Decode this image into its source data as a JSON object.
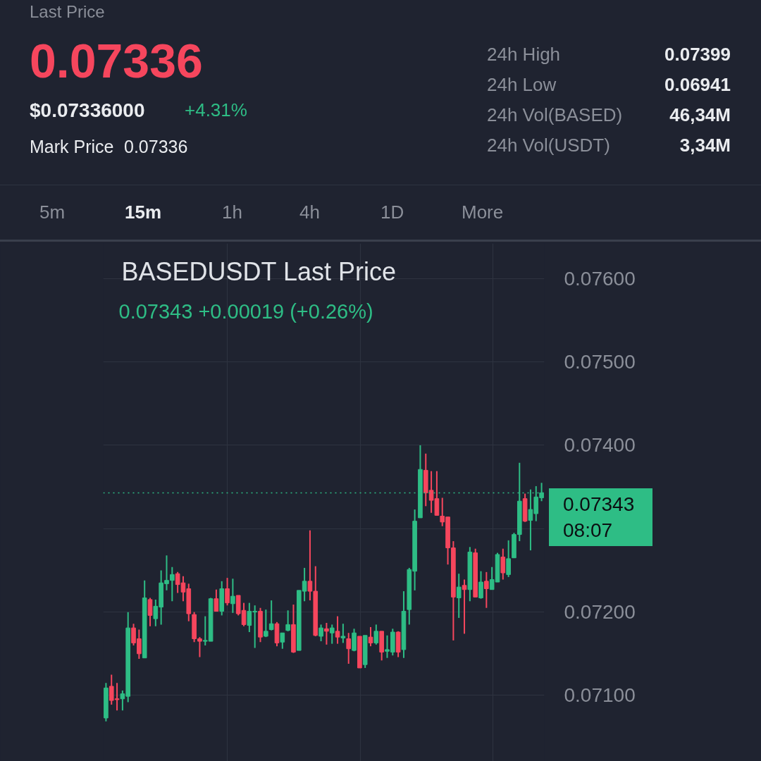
{
  "chart_data": {
    "type": "candlestick",
    "title": "BASEDUSDT Last Price",
    "subtitle": "0.07343  +0.00019 (+0.26%)",
    "annotations": [
      "Last Price",
      "0.07336",
      "$0.07336000",
      "+4.31%",
      "Mark Price",
      "0.07336",
      "24h High",
      "0.07399",
      "24h Low",
      "0.06941",
      "24h Vol(BASED)",
      "46,34M",
      "24h Vol(USDT)",
      "3,34M",
      "5m",
      "15m",
      "1h",
      "4h",
      "1D",
      "More",
      "08:07"
    ],
    "categories": [
      null,
      null,
      null,
      null,
      null,
      null,
      null,
      null,
      null,
      null,
      null,
      null,
      null,
      null,
      null,
      null,
      null,
      null,
      null,
      null,
      null,
      null,
      null,
      null,
      null,
      null,
      null,
      null,
      null,
      null,
      null,
      null,
      null,
      null,
      null,
      null,
      null,
      null,
      null,
      null,
      null,
      null,
      null,
      null,
      null,
      null,
      null,
      null,
      null,
      null,
      null,
      null,
      null,
      null,
      null,
      null,
      null,
      null,
      null,
      null,
      null,
      null,
      null,
      null,
      null,
      null,
      null,
      null,
      null,
      null,
      null,
      null,
      null,
      null,
      null,
      null,
      null,
      null,
      null,
      null
    ],
    "ohlc": [
      [
        0.07073,
        0.07115,
        0.07069,
        0.07109
      ],
      [
        0.07111,
        0.07125,
        0.07089,
        0.07094
      ],
      [
        0.07096,
        0.07115,
        0.07082,
        0.07095
      ],
      [
        0.07096,
        0.07106,
        0.07082,
        0.07102
      ],
      [
        0.07099,
        0.072,
        0.07092,
        0.07181
      ],
      [
        0.07181,
        0.07186,
        0.0716,
        0.07163
      ],
      [
        0.07168,
        0.07179,
        0.07144,
        0.0715
      ],
      [
        0.07145,
        0.07238,
        0.07145,
        0.07217
      ],
      [
        0.07215,
        0.07217,
        0.07183,
        0.07196
      ],
      [
        0.07192,
        0.07215,
        0.07183,
        0.07207
      ],
      [
        0.07206,
        0.0725,
        0.07185,
        0.07235
      ],
      [
        0.07234,
        0.07268,
        0.07226,
        0.07238
      ],
      [
        0.07238,
        0.07254,
        0.07213,
        0.07245
      ],
      [
        0.07246,
        0.07248,
        0.07223,
        0.07233
      ],
      [
        0.07235,
        0.07243,
        0.07213,
        0.07224
      ],
      [
        0.07228,
        0.07234,
        0.07189,
        0.07198
      ],
      [
        0.07197,
        0.072,
        0.07164,
        0.07168
      ],
      [
        0.07168,
        0.0717,
        0.07146,
        0.07165
      ],
      [
        0.07165,
        0.07195,
        0.0716,
        0.07166
      ],
      [
        0.07165,
        0.07217,
        0.07165,
        0.07216
      ],
      [
        0.07216,
        0.07227,
        0.07201,
        0.07201
      ],
      [
        0.07201,
        0.07237,
        0.07196,
        0.07228
      ],
      [
        0.07228,
        0.07241,
        0.07208,
        0.07211
      ],
      [
        0.0721,
        0.0724,
        0.07199,
        0.07219
      ],
      [
        0.0722,
        0.0722,
        0.07196,
        0.07198
      ],
      [
        0.07202,
        0.07211,
        0.07183,
        0.07185
      ],
      [
        0.07184,
        0.07211,
        0.07176,
        0.07201
      ],
      [
        0.072,
        0.07208,
        0.07157,
        0.07201
      ],
      [
        0.07201,
        0.07205,
        0.07164,
        0.0717
      ],
      [
        0.07171,
        0.07203,
        0.0717,
        0.07177
      ],
      [
        0.07179,
        0.07214,
        0.07178,
        0.07186
      ],
      [
        0.07186,
        0.07188,
        0.07159,
        0.07163
      ],
      [
        0.07164,
        0.07175,
        0.07156,
        0.07175
      ],
      [
        0.07178,
        0.07202,
        0.07177,
        0.07185
      ],
      [
        0.07185,
        0.07209,
        0.07151,
        0.07152
      ],
      [
        0.07154,
        0.07226,
        0.07154,
        0.07226
      ],
      [
        0.07225,
        0.07253,
        0.07213,
        0.07237
      ],
      [
        0.07237,
        0.07298,
        0.07214,
        0.07225
      ],
      [
        0.07225,
        0.07255,
        0.07171,
        0.07172
      ],
      [
        0.07171,
        0.07185,
        0.07165,
        0.07181
      ],
      [
        0.0718,
        0.07187,
        0.07161,
        0.07177
      ],
      [
        0.07175,
        0.07185,
        0.07162,
        0.07181
      ],
      [
        0.07177,
        0.07195,
        0.07162,
        0.0717
      ],
      [
        0.07169,
        0.07186,
        0.07163,
        0.07171
      ],
      [
        0.07168,
        0.07175,
        0.07138,
        0.07156
      ],
      [
        0.07154,
        0.0718,
        0.07153,
        0.07175
      ],
      [
        0.07171,
        0.07171,
        0.07133,
        0.07133
      ],
      [
        0.07137,
        0.07172,
        0.07133,
        0.07172
      ],
      [
        0.0717,
        0.07182,
        0.07159,
        0.07163
      ],
      [
        0.07163,
        0.07185,
        0.07161,
        0.07177
      ],
      [
        0.07177,
        0.07177,
        0.07142,
        0.07152
      ],
      [
        0.07153,
        0.07172,
        0.07145,
        0.07155
      ],
      [
        0.07152,
        0.0718,
        0.07148,
        0.07176
      ],
      [
        0.07176,
        0.07177,
        0.07146,
        0.07152
      ],
      [
        0.07155,
        0.07225,
        0.07145,
        0.07201
      ],
      [
        0.07203,
        0.07253,
        0.07185,
        0.07251
      ],
      [
        0.07249,
        0.07323,
        0.07226,
        0.07309
      ],
      [
        0.07313,
        0.074,
        0.07313,
        0.07371
      ],
      [
        0.0737,
        0.0739,
        0.07327,
        0.07343
      ],
      [
        0.07346,
        0.07369,
        0.07319,
        0.07334
      ],
      [
        0.07336,
        0.07369,
        0.07316,
        0.07316
      ],
      [
        0.07315,
        0.07337,
        0.07303,
        0.07308
      ],
      [
        0.07314,
        0.07314,
        0.07257,
        0.07277
      ],
      [
        0.07277,
        0.07285,
        0.07166,
        0.07218
      ],
      [
        0.07217,
        0.07246,
        0.07193,
        0.0723
      ],
      [
        0.07232,
        0.07239,
        0.07174,
        0.07227
      ],
      [
        0.07227,
        0.07278,
        0.07213,
        0.07272
      ],
      [
        0.07271,
        0.07276,
        0.07218,
        0.07218
      ],
      [
        0.07217,
        0.07249,
        0.07216,
        0.07236
      ],
      [
        0.07237,
        0.07248,
        0.07205,
        0.07228
      ],
      [
        0.07227,
        0.07254,
        0.07227,
        0.07239
      ],
      [
        0.07236,
        0.07271,
        0.07236,
        0.07269
      ],
      [
        0.07266,
        0.07276,
        0.07239,
        0.07247
      ],
      [
        0.07245,
        0.07286,
        0.07242,
        0.07264
      ],
      [
        0.07265,
        0.07295,
        0.07265,
        0.07293
      ],
      [
        0.07293,
        0.07379,
        0.07285,
        0.07333
      ],
      [
        0.07336,
        0.07342,
        0.07308,
        0.07309
      ],
      [
        0.0731,
        0.07347,
        0.07274,
        0.07323
      ],
      [
        0.07318,
        0.07351,
        0.07309,
        0.07338
      ],
      [
        0.07337,
        0.07355,
        0.07333,
        0.07343
      ]
    ],
    "ylim": [
      0.07021,
      0.07642
    ],
    "yticks": [
      {
        "value": 0.071,
        "label": "0.07100"
      },
      {
        "value": 0.072,
        "label": "0.07200"
      },
      {
        "value": 0.073,
        "label": null
      },
      {
        "value": 0.074,
        "label": "0.07400"
      },
      {
        "value": 0.075,
        "label": "0.07500"
      },
      {
        "value": 0.076,
        "label": "0.07600"
      }
    ],
    "ref_lines": [
      {
        "axis": "y",
        "value": 0.07343,
        "label": "0.07343",
        "color": "#2ebd85",
        "line_style": "dotted"
      }
    ],
    "grid": true,
    "tick_labels": "y"
  }
}
